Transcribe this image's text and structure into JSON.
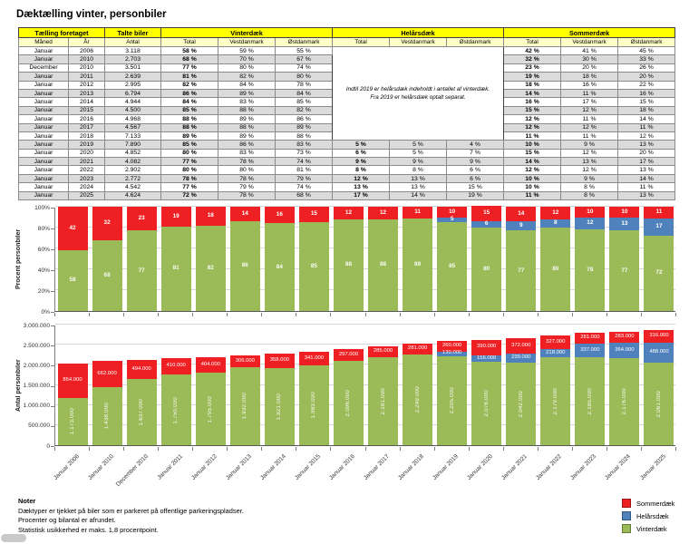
{
  "title": "Dæktælling vinter, personbiler",
  "colors": {
    "sommerdaek_red": "#EE2024",
    "helaarsdaek_blue": "#4F81BD",
    "vinterdaek_green": "#9BBB59",
    "header_yellow": "#FFFF00",
    "subheader_yellow": "#FFFFC8",
    "row_stripe_gray": "#DBDBDB"
  },
  "table": {
    "groups": [
      {
        "label": "Tælling foretaget",
        "span": 2
      },
      {
        "label": "Talte biler",
        "span": 1
      },
      {
        "label": "Vinterdæk",
        "span": 3
      },
      {
        "label": "Helårsdæk",
        "span": 3
      },
      {
        "label": "Sommerdæk",
        "span": 3
      }
    ],
    "subheaders": [
      "Måned",
      "År",
      "Antal",
      "Total",
      "Vestdanmark",
      "Østdanmark",
      "Total",
      "Vestdanmark",
      "Østdanmark",
      "Total",
      "Vestdanmark",
      "Østdanmark"
    ],
    "helars_note": [
      "Indtil 2019 er helårsdæk indeholdt i antallet af vinterdæk.",
      "Fra 2019 er helårsdæk optalt separat."
    ],
    "rows": [
      [
        "Januar",
        "2006",
        "3.118",
        "58 %",
        "59 %",
        "55 %",
        "",
        "",
        "",
        "42 %",
        "41 %",
        "45 %"
      ],
      [
        "Januar",
        "2010",
        "2.703",
        "68 %",
        "70 %",
        "67 %",
        "",
        "",
        "",
        "32 %",
        "30 %",
        "33 %"
      ],
      [
        "December",
        "2010",
        "3.501",
        "77 %",
        "80 %",
        "74 %",
        "",
        "",
        "",
        "23 %",
        "20 %",
        "26 %"
      ],
      [
        "Januar",
        "2011",
        "2.639",
        "81 %",
        "82 %",
        "80 %",
        "",
        "",
        "",
        "19 %",
        "18 %",
        "20 %"
      ],
      [
        "Januar",
        "2012",
        "2.995",
        "82 %",
        "84 %",
        "78 %",
        "",
        "",
        "",
        "18 %",
        "16 %",
        "22 %"
      ],
      [
        "Januar",
        "2013",
        "6.794",
        "86 %",
        "89 %",
        "84 %",
        "",
        "",
        "",
        "14 %",
        "11 %",
        "16 %"
      ],
      [
        "Januar",
        "2014",
        "4.944",
        "84 %",
        "83 %",
        "85 %",
        "",
        "",
        "",
        "16 %",
        "17 %",
        "15 %"
      ],
      [
        "Januar",
        "2015",
        "4.500",
        "85 %",
        "88 %",
        "82 %",
        "",
        "",
        "",
        "15 %",
        "12 %",
        "18 %"
      ],
      [
        "Januar",
        "2016",
        "4.968",
        "88 %",
        "89 %",
        "86 %",
        "",
        "",
        "",
        "12 %",
        "11 %",
        "14 %"
      ],
      [
        "Januar",
        "2017",
        "4.567",
        "88 %",
        "88 %",
        "89 %",
        "",
        "",
        "",
        "12 %",
        "12 %",
        "11 %"
      ],
      [
        "Januar",
        "2018",
        "7.133",
        "89 %",
        "89 %",
        "88 %",
        "",
        "",
        "",
        "11 %",
        "11 %",
        "12 %"
      ],
      [
        "Januar",
        "2019",
        "7.890",
        "85 %",
        "86 %",
        "83 %",
        "5 %",
        "5 %",
        "4 %",
        "10 %",
        "9 %",
        "13 %"
      ],
      [
        "Januar",
        "2020",
        "4.852",
        "80 %",
        "83 %",
        "73 %",
        "6 %",
        "5 %",
        "7 %",
        "15 %",
        "12 %",
        "20 %"
      ],
      [
        "Januar",
        "2021",
        "4.082",
        "77 %",
        "78 %",
        "74 %",
        "9 %",
        "9 %",
        "9 %",
        "14 %",
        "13 %",
        "17 %"
      ],
      [
        "Januar",
        "2022",
        "2.902",
        "80 %",
        "80 %",
        "81 %",
        "8 %",
        "8 %",
        "6 %",
        "12 %",
        "12 %",
        "13 %"
      ],
      [
        "Januar",
        "2023",
        "2.772",
        "78 %",
        "78 %",
        "79 %",
        "12 %",
        "13 %",
        "6 %",
        "10 %",
        "9 %",
        "14 %"
      ],
      [
        "Januar",
        "2024",
        "4.542",
        "77 %",
        "79 %",
        "74 %",
        "13 %",
        "13 %",
        "15 %",
        "10 %",
        "8 %",
        "11 %"
      ],
      [
        "Januar",
        "2025",
        "4.624",
        "72 %",
        "78 %",
        "68 %",
        "17 %",
        "14 %",
        "19 %",
        "11 %",
        "8 %",
        "13 %"
      ]
    ]
  },
  "chart_data": [
    {
      "type": "bar",
      "stacked": true,
      "title": "",
      "ylabel": "Procent personbiler",
      "xlabel": "",
      "ylim": [
        0,
        100
      ],
      "yticks": [
        "0%",
        "20%",
        "40%",
        "60%",
        "80%",
        "100%"
      ],
      "grid": true,
      "categories": [
        "Januar 2006",
        "Januar 2010",
        "December 2010",
        "Januar 2011",
        "Januar 2012",
        "Januar 2013",
        "Januar 2014",
        "Januar 2015",
        "Januar 2016",
        "Januar 2017",
        "Januar 2018",
        "Januar 2019",
        "Januar 2020",
        "Januar 2021",
        "Januar 2022",
        "Januar 2023",
        "Januar 2024",
        "Januar 2025"
      ],
      "series": [
        {
          "name": "Vinterdæk",
          "color": "#9BBB59",
          "values": [
            58,
            68,
            77,
            81,
            82,
            86,
            84,
            85,
            88,
            88,
            89,
            85,
            80,
            77,
            80,
            78,
            77,
            72
          ]
        },
        {
          "name": "Helårsdæk",
          "color": "#4F81BD",
          "values": [
            0,
            0,
            0,
            0,
            0,
            0,
            0,
            0,
            0,
            0,
            0,
            5,
            6,
            9,
            8,
            12,
            13,
            17
          ]
        },
        {
          "name": "Sommerdæk",
          "color": "#EE2024",
          "values": [
            42,
            32,
            23,
            19,
            18,
            14,
            16,
            15,
            12,
            12,
            11,
            10,
            15,
            14,
            12,
            10,
            10,
            11
          ]
        }
      ]
    },
    {
      "type": "bar",
      "stacked": true,
      "title": "",
      "ylabel": "Antal personbiler",
      "xlabel": "",
      "ylim": [
        0,
        3000000
      ],
      "yticks": [
        "0",
        "500.000",
        "1.000.000",
        "1.500.000",
        "2.000.000",
        "2.500.000",
        "3.000.000"
      ],
      "grid": true,
      "categories": [
        "Januar 2006",
        "Januar 2010",
        "December 2010",
        "Januar 2011",
        "Januar 2012",
        "Januar 2013",
        "Januar 2014",
        "Januar 2015",
        "Januar 2016",
        "Januar 2017",
        "Januar 2018",
        "Januar 2019",
        "Januar 2020",
        "Januar 2021",
        "Januar 2022",
        "Januar 2023",
        "Januar 2024",
        "Januar 2025"
      ],
      "series": [
        {
          "name": "Vinterdæk",
          "color": "#9BBB59",
          "values": [
            1173000,
            1438000,
            1637000,
            1750000,
            1795000,
            1932000,
            1921000,
            1983000,
            2096000,
            2181000,
            2249000,
            2205000,
            2076000,
            2042000,
            2179000,
            2185000,
            2176000,
            2061000
          ],
          "labels": [
            "1.173.000",
            "1.438.000",
            "1.637.000",
            "1.750.000",
            "1.795.000",
            "1.932.000",
            "1.921.000",
            "1.983.000",
            "2.096.000",
            "2.181.000",
            "2.249.000",
            "2.205.000",
            "2.076.000",
            "2.042.000",
            "2.179.000",
            "2.185.000",
            "2.176.000",
            "2.061.000"
          ]
        },
        {
          "name": "Helårsdæk",
          "color": "#4F81BD",
          "values": [
            0,
            0,
            0,
            0,
            0,
            0,
            0,
            0,
            0,
            0,
            0,
            130000,
            156000,
            239000,
            218000,
            337000,
            364000,
            488000
          ],
          "labels": [
            "",
            "",
            "",
            "",
            "",
            "",
            "",
            "",
            "",
            "",
            "",
            "130.000",
            "156.000",
            "239.000",
            "218.000",
            "337.000",
            "364.000",
            "488.000"
          ]
        },
        {
          "name": "Sommerdæk",
          "color": "#EE2024",
          "values": [
            854000,
            662000,
            494000,
            410000,
            404000,
            306000,
            358000,
            341000,
            297000,
            285000,
            281000,
            260000,
            390000,
            372000,
            327000,
            281000,
            283000,
            316000
          ],
          "labels": [
            "854.000",
            "662.000",
            "494.000",
            "410.000",
            "404.000",
            "306.000",
            "358.000",
            "341.000",
            "297.000",
            "285.000",
            "281.000",
            "260.000",
            "390.000",
            "372.000",
            "327.000",
            "281.000",
            "283.000",
            "316.000"
          ]
        }
      ]
    }
  ],
  "notes": {
    "heading": "Noter",
    "lines": [
      "Dæktyper er tjekket på biler som er parkeret på offentlige parkeringspladser.",
      "Procenter og bilantal er afrundet.",
      "Statistisk usikkerhed er maks. 1,8 procentpoint."
    ]
  },
  "legend": [
    {
      "label": "Sommerdæk",
      "color": "#EE2024"
    },
    {
      "label": "Helårsdæk",
      "color": "#4F81BD"
    },
    {
      "label": "Vinterdæk",
      "color": "#9BBB59"
    }
  ]
}
